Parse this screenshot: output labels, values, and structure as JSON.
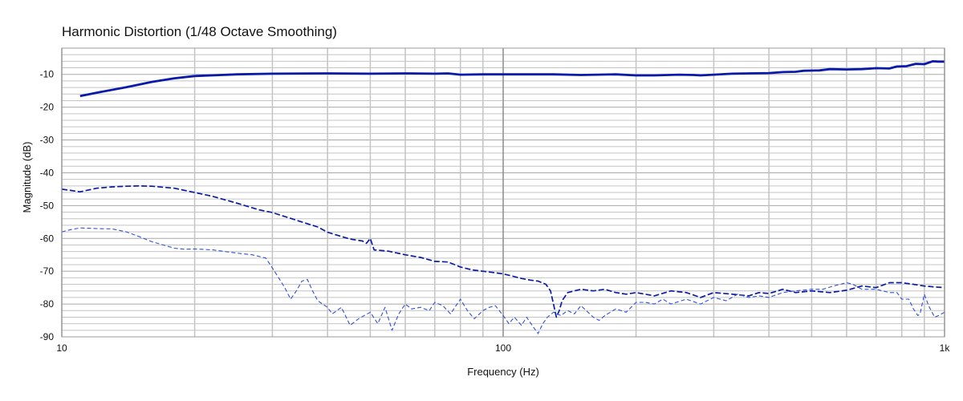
{
  "chart_data": {
    "type": "line",
    "title": "Harmonic Distortion (1/48 Octave Smoothing)",
    "xlabel": "Frequency (Hz)",
    "ylabel": "Magnitude (dB)",
    "xscale": "log",
    "xlim": [
      10,
      1000
    ],
    "ylim": [
      -90,
      -2
    ],
    "x_ticks": [
      10,
      100,
      1000
    ],
    "x_tick_labels": [
      "10",
      "100",
      "1k"
    ],
    "y_ticks": [
      -10,
      -20,
      -30,
      -40,
      -50,
      -60,
      -70,
      -80,
      -90
    ],
    "y_tick_labels": [
      "-10",
      "-20",
      "-30",
      "-40",
      "-50",
      "-60",
      "-70",
      "-80",
      "-90"
    ],
    "grid": true,
    "colors": {
      "series_dark": "#0a1aa8",
      "series_light": "#3050d8",
      "grid_major": "#8c8c8c",
      "grid_minor": "#c4c4c4"
    },
    "series": [
      {
        "style": "solid",
        "points": [
          [
            11,
            -16.6
          ],
          [
            12,
            -15.6
          ],
          [
            14,
            -13.9
          ],
          [
            16,
            -12.3
          ],
          [
            18,
            -11.2
          ],
          [
            20,
            -10.5
          ],
          [
            25,
            -10.0
          ],
          [
            30,
            -9.8
          ],
          [
            40,
            -9.7
          ],
          [
            50,
            -9.8
          ],
          [
            60,
            -9.7
          ],
          [
            70,
            -9.8
          ],
          [
            75,
            -9.7
          ],
          [
            80,
            -10.1
          ],
          [
            90,
            -10.0
          ],
          [
            100,
            -10.0
          ],
          [
            130,
            -10.0
          ],
          [
            150,
            -10.2
          ],
          [
            180,
            -10.0
          ],
          [
            200,
            -10.3
          ],
          [
            220,
            -10.3
          ],
          [
            250,
            -10.1
          ],
          [
            270,
            -10.2
          ],
          [
            280,
            -10.3
          ],
          [
            300,
            -10.1
          ],
          [
            330,
            -9.8
          ],
          [
            360,
            -9.7
          ],
          [
            400,
            -9.6
          ],
          [
            430,
            -9.3
          ],
          [
            460,
            -9.2
          ],
          [
            480,
            -8.9
          ],
          [
            520,
            -8.8
          ],
          [
            550,
            -8.4
          ],
          [
            600,
            -8.5
          ],
          [
            650,
            -8.4
          ],
          [
            700,
            -8.1
          ],
          [
            750,
            -8.2
          ],
          [
            780,
            -7.6
          ],
          [
            820,
            -7.5
          ],
          [
            860,
            -6.8
          ],
          [
            900,
            -6.9
          ],
          [
            940,
            -6.0
          ],
          [
            970,
            -6.1
          ],
          [
            1000,
            -6.1
          ]
        ]
      },
      {
        "style": "dashed",
        "points": [
          [
            10,
            -45
          ],
          [
            10.5,
            -45.4
          ],
          [
            11,
            -45.8
          ],
          [
            12,
            -44.7
          ],
          [
            13,
            -44.3
          ],
          [
            14,
            -44.1
          ],
          [
            15,
            -44.0
          ],
          [
            16,
            -44.1
          ],
          [
            18,
            -44.7
          ],
          [
            20,
            -46.0
          ],
          [
            22,
            -47.2
          ],
          [
            25,
            -49.3
          ],
          [
            28,
            -51.3
          ],
          [
            30,
            -52.1
          ],
          [
            35,
            -55.0
          ],
          [
            38,
            -56.5
          ],
          [
            40,
            -58.1
          ],
          [
            42,
            -59.0
          ],
          [
            45,
            -60.2
          ],
          [
            48,
            -60.8
          ],
          [
            49,
            -61.5
          ],
          [
            50,
            -60.0
          ],
          [
            51,
            -63.5
          ],
          [
            55,
            -63.9
          ],
          [
            60,
            -65.0
          ],
          [
            65,
            -65.8
          ],
          [
            70,
            -67.0
          ],
          [
            75,
            -67.2
          ],
          [
            80,
            -68.7
          ],
          [
            85,
            -69.6
          ],
          [
            90,
            -70.0
          ],
          [
            95,
            -70.4
          ],
          [
            100,
            -70.8
          ],
          [
            105,
            -71.5
          ],
          [
            110,
            -72.2
          ],
          [
            115,
            -72.7
          ],
          [
            120,
            -73.0
          ],
          [
            125,
            -74.0
          ],
          [
            128,
            -76.0
          ],
          [
            130,
            -80.0
          ],
          [
            132,
            -84.0
          ],
          [
            134,
            -82.0
          ],
          [
            136,
            -79.0
          ],
          [
            140,
            -76.5
          ],
          [
            150,
            -75.5
          ],
          [
            160,
            -76.0
          ],
          [
            170,
            -75.5
          ],
          [
            180,
            -76.5
          ],
          [
            190,
            -77.0
          ],
          [
            200,
            -76.5
          ],
          [
            220,
            -77.5
          ],
          [
            240,
            -76.0
          ],
          [
            260,
            -76.5
          ],
          [
            280,
            -78.0
          ],
          [
            300,
            -76.5
          ],
          [
            330,
            -77.0
          ],
          [
            360,
            -77.5
          ],
          [
            380,
            -76.5
          ],
          [
            400,
            -76.8
          ],
          [
            430,
            -75.5
          ],
          [
            460,
            -76.5
          ],
          [
            500,
            -76.0
          ],
          [
            550,
            -76.5
          ],
          [
            600,
            -75.8
          ],
          [
            650,
            -74.5
          ],
          [
            700,
            -75.0
          ],
          [
            750,
            -73.5
          ],
          [
            800,
            -73.5
          ],
          [
            850,
            -74.0
          ],
          [
            900,
            -74.5
          ],
          [
            950,
            -74.8
          ],
          [
            1000,
            -75.0
          ]
        ]
      },
      {
        "style": "thin-dashed",
        "points": [
          [
            10,
            -58.0
          ],
          [
            10.5,
            -57.3
          ],
          [
            11,
            -56.8
          ],
          [
            12,
            -57.0
          ],
          [
            13,
            -57.1
          ],
          [
            14,
            -58.0
          ],
          [
            15,
            -59.5
          ],
          [
            16,
            -61.0
          ],
          [
            17,
            -62.0
          ],
          [
            18,
            -63.0
          ],
          [
            19,
            -63.3
          ],
          [
            20,
            -63.2
          ],
          [
            22,
            -63.5
          ],
          [
            25,
            -64.5
          ],
          [
            27,
            -65.0
          ],
          [
            29,
            -66.0
          ],
          [
            30,
            -69.0
          ],
          [
            31,
            -72.0
          ],
          [
            32,
            -75.0
          ],
          [
            33,
            -78.5
          ],
          [
            34,
            -76.0
          ],
          [
            35,
            -73.0
          ],
          [
            36,
            -72.5
          ],
          [
            37,
            -76.0
          ],
          [
            38,
            -79.0
          ],
          [
            40,
            -81.0
          ],
          [
            41,
            -83.0
          ],
          [
            43,
            -81.0
          ],
          [
            45,
            -86.5
          ],
          [
            47,
            -84.5
          ],
          [
            50,
            -82.5
          ],
          [
            52,
            -86.0
          ],
          [
            54,
            -81.0
          ],
          [
            56,
            -88.0
          ],
          [
            58,
            -83.0
          ],
          [
            60,
            -80.0
          ],
          [
            62,
            -81.5
          ],
          [
            65,
            -81.0
          ],
          [
            68,
            -82.0
          ],
          [
            70,
            -79.5
          ],
          [
            73,
            -80.5
          ],
          [
            76,
            -83.0
          ],
          [
            80,
            -78.5
          ],
          [
            83,
            -82.0
          ],
          [
            86,
            -84.5
          ],
          [
            90,
            -82.0
          ],
          [
            93,
            -81.0
          ],
          [
            96,
            -80.5
          ],
          [
            100,
            -83.5
          ],
          [
            103,
            -86.0
          ],
          [
            106,
            -84.0
          ],
          [
            110,
            -86.5
          ],
          [
            113,
            -84.0
          ],
          [
            117,
            -87.0
          ],
          [
            120,
            -89.0
          ],
          [
            123,
            -86.0
          ],
          [
            126,
            -84.0
          ],
          [
            130,
            -82.5
          ],
          [
            135,
            -83.5
          ],
          [
            140,
            -82.0
          ],
          [
            145,
            -83.0
          ],
          [
            150,
            -80.5
          ],
          [
            160,
            -84.0
          ],
          [
            165,
            -85.0
          ],
          [
            170,
            -83.5
          ],
          [
            180,
            -81.5
          ],
          [
            190,
            -82.5
          ],
          [
            200,
            -79.5
          ],
          [
            210,
            -79.5
          ],
          [
            220,
            -80.0
          ],
          [
            230,
            -78.5
          ],
          [
            240,
            -80.0
          ],
          [
            260,
            -78.5
          ],
          [
            280,
            -80.0
          ],
          [
            300,
            -78.0
          ],
          [
            320,
            -79.0
          ],
          [
            340,
            -77.0
          ],
          [
            360,
            -78.0
          ],
          [
            380,
            -77.5
          ],
          [
            400,
            -78.0
          ],
          [
            430,
            -76.5
          ],
          [
            460,
            -76.0
          ],
          [
            500,
            -75.5
          ],
          [
            530,
            -75.5
          ],
          [
            560,
            -74.5
          ],
          [
            600,
            -73.5
          ],
          [
            620,
            -74.0
          ],
          [
            650,
            -75.5
          ],
          [
            700,
            -75.5
          ],
          [
            750,
            -76.5
          ],
          [
            780,
            -76.5
          ],
          [
            800,
            -78.5
          ],
          [
            830,
            -78.5
          ],
          [
            850,
            -81.5
          ],
          [
            870,
            -83.5
          ],
          [
            880,
            -83.0
          ],
          [
            900,
            -77.0
          ],
          [
            920,
            -80.5
          ],
          [
            950,
            -84.0
          ],
          [
            970,
            -83.5
          ],
          [
            1000,
            -82.5
          ]
        ]
      }
    ]
  }
}
